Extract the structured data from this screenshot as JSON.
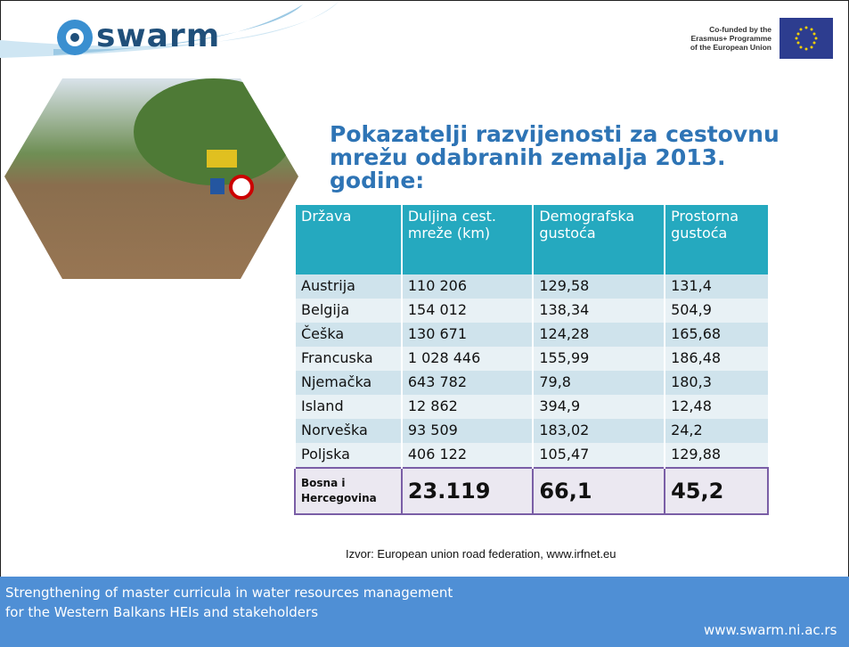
{
  "header": {
    "logo": "swarm",
    "cofunded_lines": [
      "Co-funded by the",
      "Erasmus+ Programme",
      "of the European Union"
    ]
  },
  "title_lines": [
    "Pokazatelji razvijenosti za cestovnu",
    "mrežu odabranih  zemalja 2013.",
    "godine:"
  ],
  "table": {
    "header": [
      "Država",
      "Duljina cest. mreže (km)",
      "Demografska gustoća",
      "Prostorna gustoća"
    ],
    "rows": [
      [
        "Austrija",
        "110 206",
        "129,58",
        "131,4"
      ],
      [
        "Belgija",
        "154 012",
        "138,34",
        "504,9"
      ],
      [
        "Češka",
        "130 671",
        "124,28",
        "165,68"
      ],
      [
        "Francuska",
        "1 028 446",
        "155,99",
        "186,48"
      ],
      [
        "Njemačka",
        "643 782",
        "79,8",
        "180,3"
      ],
      [
        "Island",
        "12 862",
        "394,9",
        "12,48"
      ],
      [
        "Norveška",
        "93 509",
        "183,02",
        "24,2"
      ],
      [
        "Poljska",
        "406 122",
        "105,47",
        "129,88"
      ],
      [
        "Bosna i Hercegovina",
        "23.119",
        "66,1",
        "45,2"
      ]
    ]
  },
  "source": "Izvor: European union road federation, www.irfnet.eu",
  "footer": {
    "lines": [
      "Strengthening of master curricula in water resources  management",
      "for the Western Balkans HEIs and stakeholders"
    ],
    "url": "www.swarm.ni.ac.rs"
  }
}
